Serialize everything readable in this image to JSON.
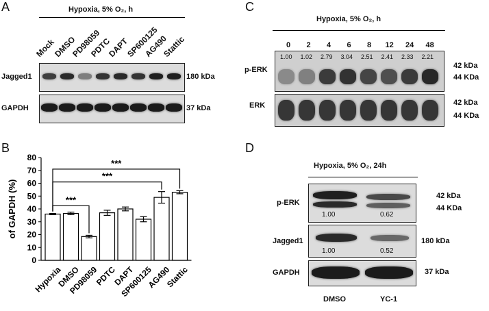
{
  "panels": {
    "A": {
      "letter": "A",
      "title": "Hypoxia, 5% O₂, h",
      "lanes": [
        "Mock",
        "DMSO",
        "PD98059",
        "PDTC",
        "DAPT",
        "SP600125",
        "AG490",
        "Stattic"
      ],
      "rows": [
        {
          "label": "Jagged1",
          "size": "180 kDa"
        },
        {
          "label": "GAPDH",
          "size": "37 kDa"
        }
      ]
    },
    "B": {
      "letter": "B",
      "stars": [
        "***",
        "***",
        "***"
      ]
    },
    "C": {
      "letter": "C",
      "title": "Hypoxia, 5% O₂, h",
      "timepoints": [
        "0",
        "2",
        "4",
        "6",
        "8",
        "12",
        "24",
        "48"
      ],
      "ratios": [
        "1.00",
        "1.02",
        "2.79",
        "3.04",
        "2.51",
        "2.41",
        "2.33",
        "2.21"
      ],
      "rows": [
        {
          "label": "p-ERK",
          "size_top": "42 kDa",
          "size_bottom": "44 KDa"
        },
        {
          "label": "ERK",
          "size_top": "42 kDa",
          "size_bottom": "44 KDa"
        }
      ]
    },
    "D": {
      "letter": "D",
      "title": "Hypoxia, 5% O₂, 24h",
      "lanes": [
        "DMSO",
        "YC-1"
      ],
      "rows": [
        {
          "label": "p-ERK",
          "size_top": "42 kDa",
          "size_bottom": "44 KDa",
          "ratios": [
            "1.00",
            "0.62"
          ]
        },
        {
          "label": "Jagged1",
          "size": "180 kDa",
          "ratios": [
            "1.00",
            "0.52"
          ]
        },
        {
          "label": "GAPDH",
          "size": "37 kDa"
        }
      ]
    }
  },
  "chart_data": {
    "type": "bar",
    "categories": [
      "Hypoxia",
      "DMSO",
      "PD98059",
      "PDTC",
      "DAPT",
      "SP600125",
      "AG490",
      "Stattic"
    ],
    "values": [
      36,
      36.5,
      18.5,
      37,
      40,
      32,
      49,
      53
    ],
    "errors": [
      0.5,
      1,
      1,
      2,
      1.5,
      2,
      4.5,
      1.2
    ],
    "ylabel": "of GAPDH (%)",
    "ylim": [
      0,
      80
    ],
    "yticks": [
      "0",
      "10",
      "20",
      "30",
      "40",
      "50",
      "60",
      "70",
      "80"
    ],
    "significance": [
      {
        "from": "Hypoxia",
        "to": "PD98059",
        "label": "***"
      },
      {
        "from": "Hypoxia",
        "to": "AG490",
        "label": "***"
      },
      {
        "from": "Hypoxia",
        "to": "Stattic",
        "label": "***"
      }
    ],
    "bar_color": "#ffffff",
    "edge_color": "#000000"
  }
}
